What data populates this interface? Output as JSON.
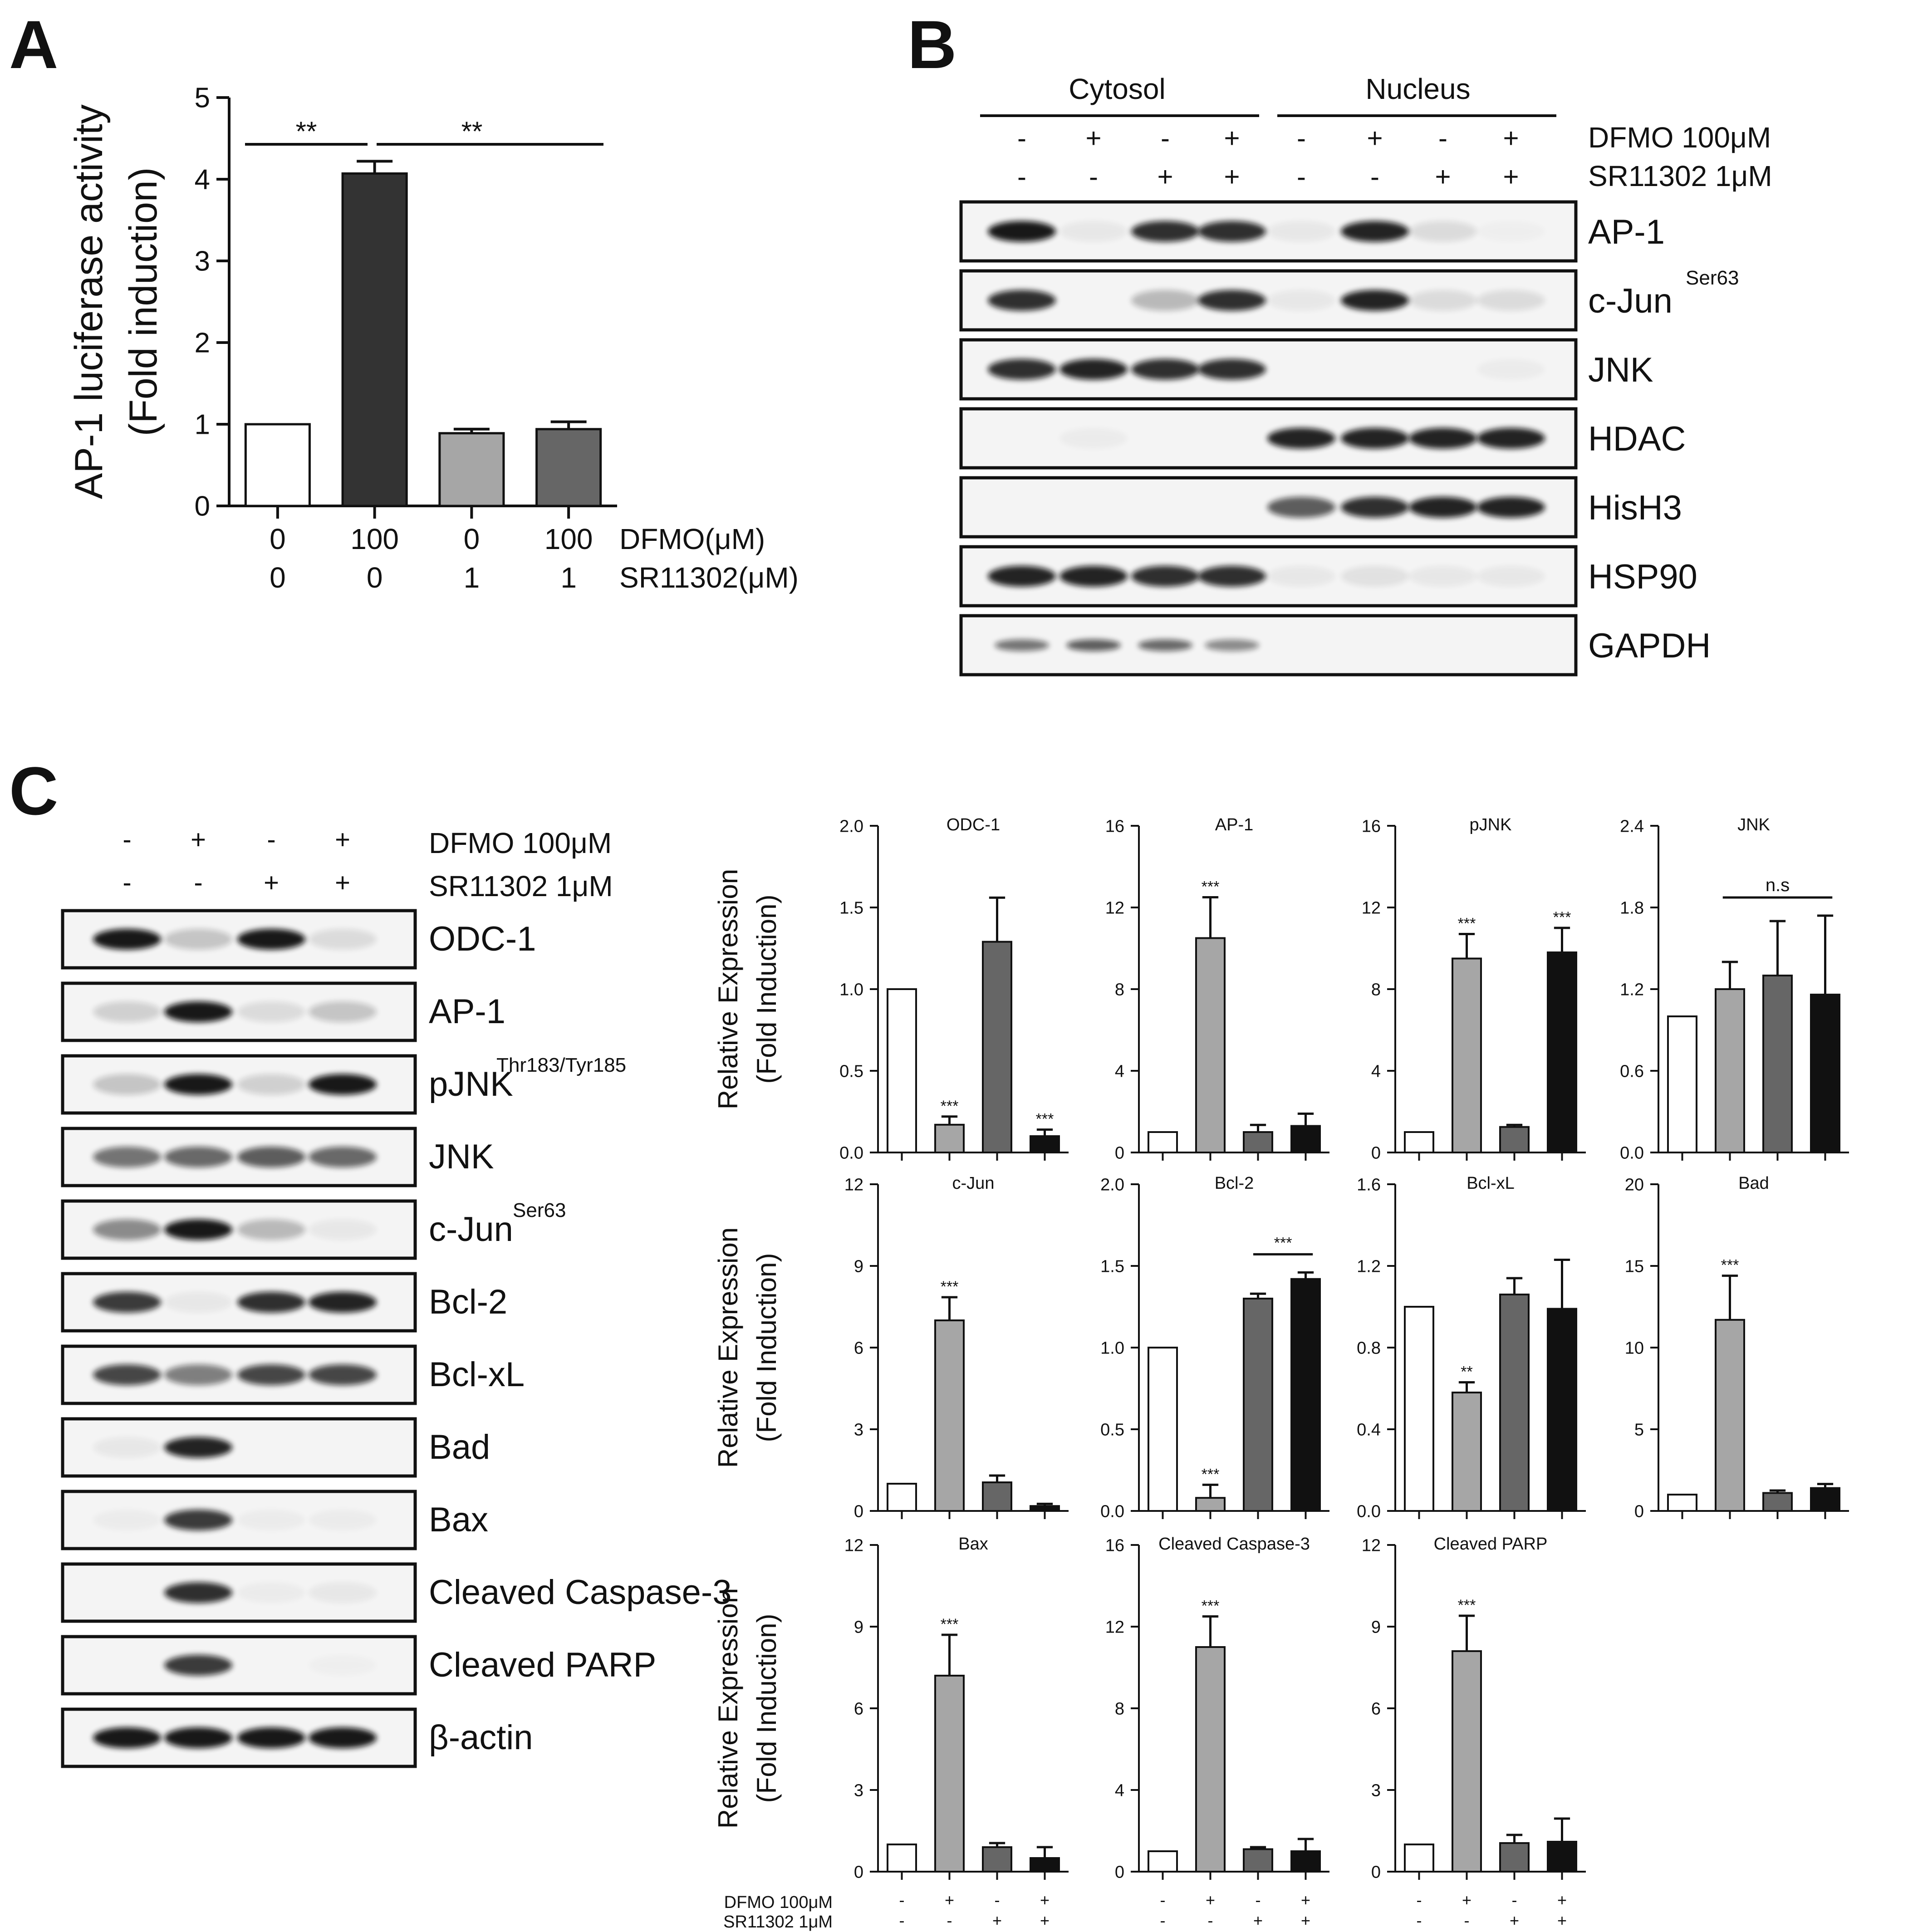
{
  "panels": {
    "a": "A",
    "b": "B",
    "c": "C"
  },
  "colors": {
    "c0": "#ffffff",
    "c1": "#333333",
    "c2": "#a6a6a6",
    "c3": "#666666",
    "c4": "#111111"
  },
  "panel_a": {
    "ylabel_line1": "AP-1 luciferase activity",
    "ylabel_line2": "(Fold induction)",
    "yticks": [
      "0",
      "1",
      "2",
      "3",
      "4",
      "5"
    ],
    "row1_label": "DFMO(μM)",
    "row2_label": "SR11302(μM)",
    "row1_values": [
      "0",
      "100",
      "0",
      "100"
    ],
    "row2_values": [
      "0",
      "0",
      "1",
      "1"
    ],
    "sig1": "**",
    "sig2": "**"
  },
  "panel_b": {
    "group1": "Cytosol",
    "group2": "Nucleus",
    "row1_label": "DFMO 100μM",
    "row2_label": "SR11302 1μM",
    "row1_signs": [
      "-",
      "+",
      "-",
      "+",
      "-",
      "+",
      "-",
      "+"
    ],
    "row2_signs": [
      "-",
      "-",
      "+",
      "+",
      "-",
      "-",
      "+",
      "+"
    ],
    "blots": [
      {
        "label": "AP-1",
        "sup": ""
      },
      {
        "label": "c-Jun",
        "sup": "Ser63"
      },
      {
        "label": "JNK",
        "sup": ""
      },
      {
        "label": "HDAC",
        "sup": ""
      },
      {
        "label": "HisH3",
        "sup": ""
      },
      {
        "label": "HSP90",
        "sup": ""
      },
      {
        "label": "GAPDH",
        "sup": ""
      }
    ]
  },
  "panel_c_blot": {
    "row1_label": "DFMO 100μM",
    "row2_label": "SR11302 1μM",
    "row1_signs": [
      "-",
      "+",
      "-",
      "+"
    ],
    "row2_signs": [
      "-",
      "-",
      "+",
      "+"
    ],
    "blots": [
      {
        "label": "ODC-1",
        "sup": ""
      },
      {
        "label": "AP-1",
        "sup": ""
      },
      {
        "label": "pJNK",
        "sup": "Thr183/Tyr185"
      },
      {
        "label": "JNK",
        "sup": ""
      },
      {
        "label": "c-Jun",
        "sup": "Ser63"
      },
      {
        "label": "Bcl-2",
        "sup": ""
      },
      {
        "label": "Bcl-xL",
        "sup": ""
      },
      {
        "label": "Bad",
        "sup": ""
      },
      {
        "label": "Bax",
        "sup": ""
      },
      {
        "label": "Cleaved Caspase-3",
        "sup": ""
      },
      {
        "label": "Cleaved PARP",
        "sup": ""
      },
      {
        "label": "β-actin",
        "sup": ""
      }
    ]
  },
  "panel_c_axis": {
    "ylabel_line1": "Relative Expression",
    "ylabel_line2": "(Fold Induction)",
    "bottom_row1_label": "DFMO 100μM",
    "bottom_row2_label": "SR11302 1μM",
    "bottom_row1_signs": [
      "-",
      "+",
      "-",
      "+"
    ],
    "bottom_row2_signs": [
      "-",
      "-",
      "+",
      "+"
    ]
  },
  "chart_data": [
    {
      "type": "bar",
      "title": "",
      "ylabel": "AP-1 luciferase activity (Fold induction)",
      "categories": [
        "0/0",
        "100/0",
        "0/1",
        "100/1"
      ],
      "values": [
        1.0,
        4.07,
        0.89,
        0.94
      ],
      "errors": [
        0,
        0.15,
        0.05,
        0.09
      ],
      "ylim": [
        0,
        5
      ],
      "yticks": [
        "0",
        "1",
        "2",
        "3",
        "4",
        "5"
      ]
    },
    {
      "type": "bar",
      "title": "ODC-1",
      "categories": [
        "-/-",
        "+/-",
        "-/+",
        "+/+"
      ],
      "values": [
        1.0,
        0.17,
        1.29,
        0.1
      ],
      "errors": [
        0,
        0.05,
        0.27,
        0.04
      ],
      "ylim": [
        0,
        2.0
      ],
      "yticks": [
        "0.0",
        "0.5",
        "1.0",
        "1.5",
        "2.0"
      ],
      "sig": [
        "",
        "***",
        "",
        "***"
      ]
    },
    {
      "type": "bar",
      "title": "AP-1",
      "categories": [
        "-/-",
        "+/-",
        "-/+",
        "+/+"
      ],
      "values": [
        1.0,
        10.5,
        1.0,
        1.3
      ],
      "errors": [
        0,
        2.0,
        0.35,
        0.6
      ],
      "ylim": [
        0,
        16
      ],
      "yticks": [
        "0",
        "4",
        "8",
        "12",
        "16"
      ],
      "sig": [
        "",
        "***",
        "",
        ""
      ]
    },
    {
      "type": "bar",
      "title": "pJNK",
      "categories": [
        "-/-",
        "+/-",
        "-/+",
        "+/+"
      ],
      "values": [
        1.0,
        9.5,
        1.25,
        9.8
      ],
      "errors": [
        0,
        1.2,
        0.1,
        1.2
      ],
      "ylim": [
        0,
        16
      ],
      "yticks": [
        "0",
        "4",
        "8",
        "12",
        "16"
      ],
      "sig": [
        "",
        "***",
        "",
        "***"
      ]
    },
    {
      "type": "bar",
      "title": "JNK",
      "categories": [
        "-/-",
        "+/-",
        "-/+",
        "+/+"
      ],
      "values": [
        1.0,
        1.2,
        1.3,
        1.16
      ],
      "errors": [
        0,
        0.2,
        0.4,
        0.58
      ],
      "ylim": [
        0,
        2.4
      ],
      "yticks": [
        "0.0",
        "0.6",
        "1.2",
        "1.8",
        "2.4"
      ],
      "bracket": "n.s"
    },
    {
      "type": "bar",
      "title": "c-Jun",
      "categories": [
        "-/-",
        "+/-",
        "-/+",
        "+/+"
      ],
      "values": [
        1.0,
        7.0,
        1.05,
        0.18
      ],
      "errors": [
        0,
        0.85,
        0.25,
        0.08
      ],
      "ylim": [
        0,
        12
      ],
      "yticks": [
        "0",
        "3",
        "6",
        "9",
        "12"
      ],
      "sig": [
        "",
        "***",
        "",
        ""
      ]
    },
    {
      "type": "bar",
      "title": "Bcl-2",
      "categories": [
        "-/-",
        "+/-",
        "-/+",
        "+/+"
      ],
      "values": [
        1.0,
        0.08,
        1.3,
        1.42
      ],
      "errors": [
        0,
        0.08,
        0.03,
        0.04
      ],
      "ylim": [
        0,
        2.0
      ],
      "yticks": [
        "0.0",
        "0.5",
        "1.0",
        "1.5",
        "2.0"
      ],
      "sig": [
        "",
        "***",
        "",
        ""
      ],
      "bracket": "***"
    },
    {
      "type": "bar",
      "title": "Bcl-xL",
      "categories": [
        "-/-",
        "+/-",
        "-/+",
        "+/+"
      ],
      "values": [
        1.0,
        0.58,
        1.06,
        0.99
      ],
      "errors": [
        0,
        0.05,
        0.08,
        0.24
      ],
      "ylim": [
        0,
        1.6
      ],
      "yticks": [
        "0.0",
        "0.4",
        "0.8",
        "1.2",
        "1.6"
      ],
      "sig": [
        "",
        "**",
        "",
        ""
      ]
    },
    {
      "type": "bar",
      "title": "Bad",
      "categories": [
        "-/-",
        "+/-",
        "-/+",
        "+/+"
      ],
      "values": [
        1.0,
        11.7,
        1.1,
        1.4
      ],
      "errors": [
        0,
        2.7,
        0.15,
        0.25
      ],
      "ylim": [
        0,
        20
      ],
      "yticks": [
        "0",
        "5",
        "10",
        "15",
        "20"
      ],
      "sig": [
        "",
        "***",
        "",
        ""
      ]
    },
    {
      "type": "bar",
      "title": "Bax",
      "categories": [
        "-/-",
        "+/-",
        "-/+",
        "+/+"
      ],
      "values": [
        1.0,
        7.2,
        0.9,
        0.5
      ],
      "errors": [
        0,
        1.5,
        0.15,
        0.4
      ],
      "ylim": [
        0,
        12
      ],
      "yticks": [
        "0",
        "3",
        "6",
        "9",
        "12"
      ],
      "sig": [
        "",
        "***",
        "",
        ""
      ]
    },
    {
      "type": "bar",
      "title": "Cleaved Caspase-3",
      "categories": [
        "-/-",
        "+/-",
        "-/+",
        "+/+"
      ],
      "values": [
        1.0,
        11.0,
        1.1,
        1.0
      ],
      "errors": [
        0,
        1.5,
        0.1,
        0.6
      ],
      "ylim": [
        0,
        16
      ],
      "yticks": [
        "0",
        "4",
        "8",
        "12",
        "16"
      ],
      "sig": [
        "",
        "***",
        "",
        ""
      ]
    },
    {
      "type": "bar",
      "title": "Cleaved PARP",
      "categories": [
        "-/-",
        "+/-",
        "-/+",
        "+/+"
      ],
      "values": [
        1.0,
        8.1,
        1.05,
        1.1
      ],
      "errors": [
        0,
        1.3,
        0.3,
        0.85
      ],
      "ylim": [
        0,
        12
      ],
      "yticks": [
        "0",
        "3",
        "6",
        "9",
        "12"
      ],
      "sig": [
        "",
        "***",
        "",
        ""
      ]
    }
  ]
}
